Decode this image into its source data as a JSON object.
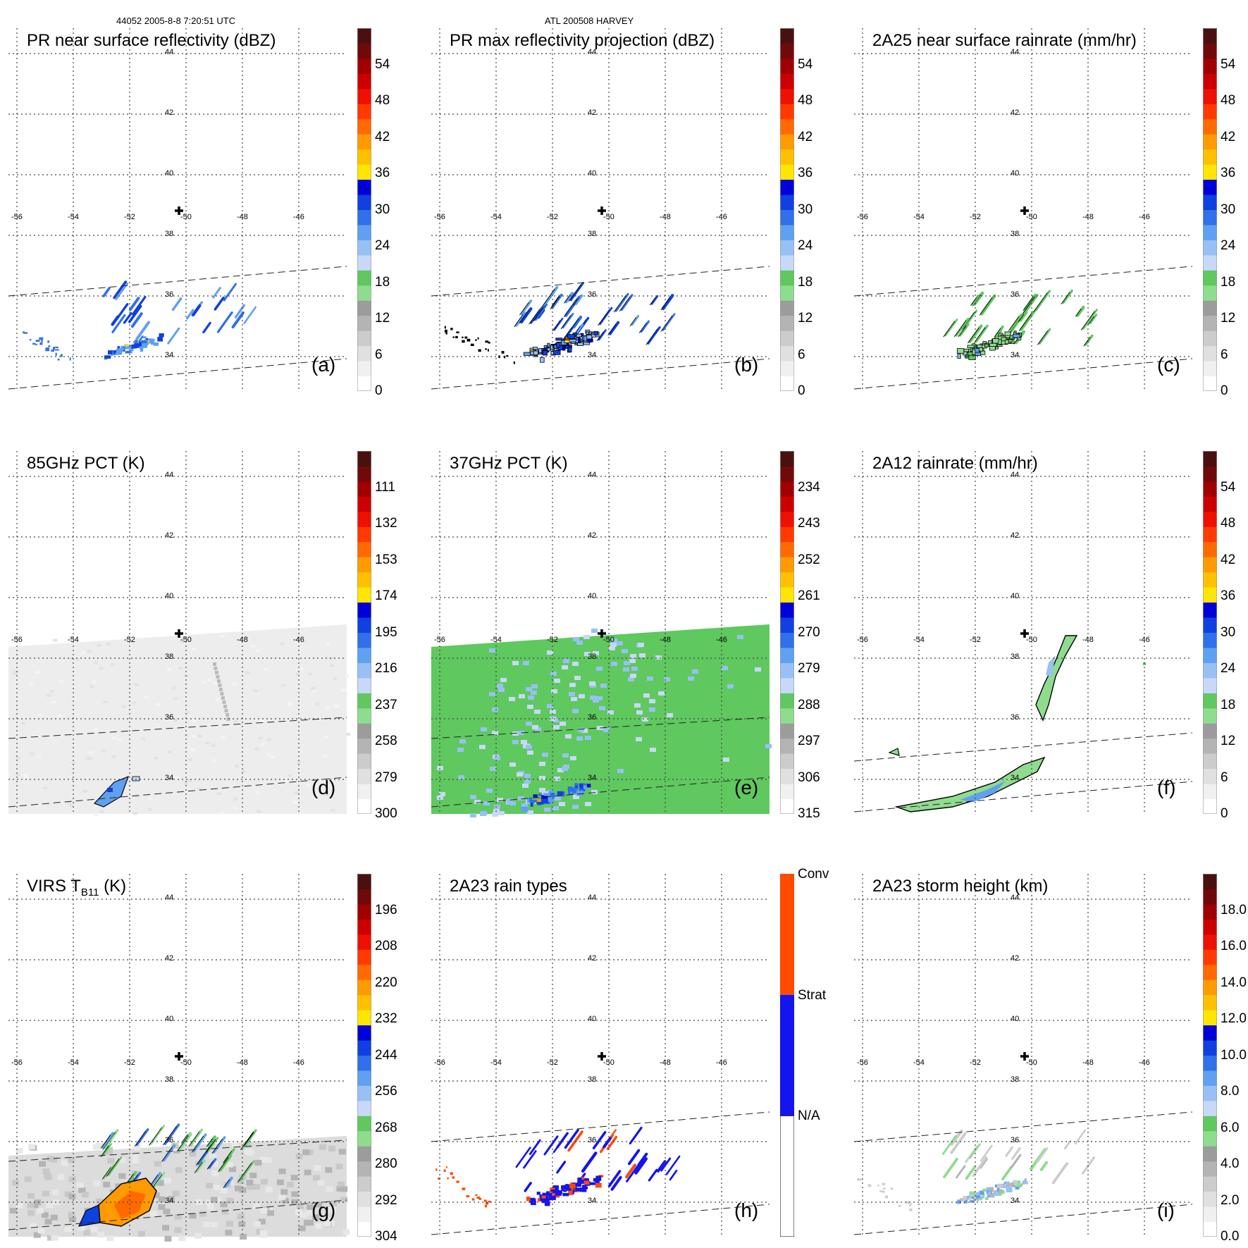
{
  "header": {
    "left": "44052 2005-8-8 7:20:51 UTC",
    "center": "ATL 200508 HARVEY"
  },
  "map_axes": {
    "lon_labels": [
      "-56",
      "-54",
      "-52",
      "-50",
      "-48",
      "-46"
    ],
    "lat_labels": [
      "44",
      "42",
      "40",
      "38",
      "36",
      "34"
    ]
  },
  "palettes": {
    "reflectivity": [
      "#ffffff",
      "#f0f0f0",
      "#e0e0e0",
      "#cccccc",
      "#b4b4b4",
      "#9c9c9c",
      "#8fdc8f",
      "#5fc85f",
      "#c8d8f8",
      "#98c0f4",
      "#60a0f0",
      "#3070e8",
      "#1040e0",
      "#0000d8",
      "#ffe600",
      "#ffc000",
      "#ff9a00",
      "#ff6a00",
      "#ff3a00",
      "#ee1000",
      "#cc0000",
      "#a00000",
      "#700a0a",
      "#4a1010"
    ],
    "rain_types": [
      "#ffffff",
      "#1414ee",
      "#ff4a00"
    ]
  },
  "panels": [
    {
      "id": "a",
      "title": "PR near surface reflectivity (dBZ)",
      "label": "(a)",
      "colorbar": {
        "labels": [
          "0",
          "6",
          "12",
          "18",
          "24",
          "30",
          "36",
          "42",
          "48",
          "54"
        ]
      }
    },
    {
      "id": "b",
      "title": "PR max reflectivity projection (dBZ)",
      "label": "(b)",
      "colorbar": {
        "labels": [
          "0",
          "6",
          "12",
          "18",
          "24",
          "30",
          "36",
          "42",
          "48",
          "54"
        ]
      }
    },
    {
      "id": "c",
      "title": "2A25 near surface rainrate (mm/hr)",
      "label": "(c)",
      "colorbar": {
        "labels": [
          "0",
          "6",
          "12",
          "18",
          "24",
          "30",
          "36",
          "42",
          "48",
          "54"
        ]
      }
    },
    {
      "id": "d",
      "title": "85GHz PCT (K)",
      "label": "(d)",
      "colorbar": {
        "labels": [
          "300",
          "279",
          "258",
          "237",
          "216",
          "195",
          "174",
          "153",
          "132",
          "111"
        ]
      }
    },
    {
      "id": "e",
      "title": "37GHz PCT (K)",
      "label": "(e)",
      "colorbar": {
        "labels": [
          "315",
          "306",
          "297",
          "288",
          "279",
          "270",
          "261",
          "252",
          "243",
          "234"
        ]
      }
    },
    {
      "id": "f",
      "title": "2A12 rainrate (mm/hr)",
      "label": "(f)",
      "colorbar": {
        "labels": [
          "0",
          "6",
          "12",
          "18",
          "24",
          "30",
          "36",
          "42",
          "48",
          "54"
        ]
      }
    },
    {
      "id": "g",
      "title_main": "VIRS T",
      "title_sub": "B11",
      "title_tail": " (K)",
      "label": "(g)",
      "colorbar": {
        "labels": [
          "304",
          "292",
          "280",
          "268",
          "256",
          "244",
          "232",
          "220",
          "208",
          "196"
        ]
      }
    },
    {
      "id": "h",
      "title": "2A23 rain types",
      "label": "(h)",
      "colorbar": {
        "labels": [
          "N/A",
          "Strat",
          "Conv"
        ]
      }
    },
    {
      "id": "i",
      "title": "2A23 storm height (km)",
      "label": "(i)",
      "colorbar": {
        "labels": [
          "0.0",
          "2.0",
          "4.0",
          "6.0",
          "8.0",
          "10.0",
          "12.0",
          "14.0",
          "16.0",
          "18.0"
        ]
      }
    }
  ]
}
